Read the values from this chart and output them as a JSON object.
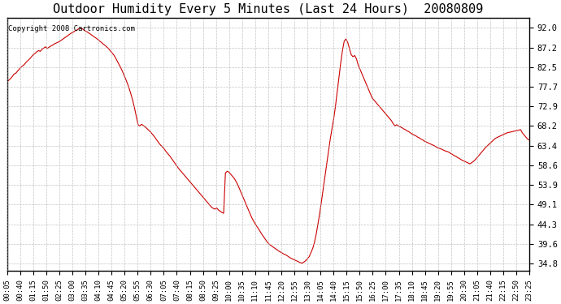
{
  "title": "Outdoor Humidity Every 5 Minutes (Last 24 Hours)  20080809",
  "copyright": "Copyright 2008 Cartronics.com",
  "line_color": "#cc0000",
  "background_color": "#ffffff",
  "grid_color": "#aaaaaa",
  "yticks": [
    34.8,
    39.6,
    44.3,
    49.1,
    53.9,
    58.6,
    63.4,
    68.2,
    72.9,
    77.7,
    82.5,
    87.2,
    92.0
  ],
  "ylim": [
    33.0,
    94.5
  ],
  "xtick_labels": [
    "00:05",
    "00:40",
    "01:15",
    "01:50",
    "02:25",
    "03:00",
    "03:35",
    "04:10",
    "04:45",
    "05:20",
    "05:55",
    "06:30",
    "07:05",
    "07:40",
    "08:15",
    "08:50",
    "09:25",
    "10:00",
    "10:35",
    "11:10",
    "11:45",
    "12:20",
    "12:55",
    "13:30",
    "14:05",
    "14:40",
    "15:15",
    "15:50",
    "16:25",
    "17:00",
    "17:35",
    "18:10",
    "18:45",
    "19:20",
    "19:55",
    "20:30",
    "21:05",
    "21:40",
    "22:15",
    "22:50",
    "23:25"
  ],
  "humidity_values": [
    79.0,
    79.3,
    79.7,
    80.2,
    80.8,
    81.0,
    81.5,
    82.0,
    82.5,
    82.8,
    83.2,
    83.7,
    84.1,
    84.5,
    85.0,
    85.5,
    85.8,
    86.2,
    86.5,
    86.3,
    86.8,
    87.1,
    87.4,
    87.0,
    87.3,
    87.6,
    87.8,
    88.1,
    88.3,
    88.5,
    88.7,
    89.0,
    89.3,
    89.6,
    89.9,
    90.2,
    90.5,
    90.8,
    91.0,
    91.3,
    91.5,
    91.8,
    92.0,
    91.8,
    91.5,
    91.2,
    91.0,
    90.7,
    90.4,
    90.1,
    89.8,
    89.5,
    89.2,
    88.8,
    88.5,
    88.1,
    87.8,
    87.4,
    87.0,
    86.5,
    86.0,
    85.5,
    84.8,
    84.0,
    83.2,
    82.4,
    81.5,
    80.5,
    79.5,
    78.4,
    77.2,
    75.8,
    74.3,
    72.5,
    70.5,
    68.5,
    68.2,
    68.6,
    68.3,
    68.0,
    67.6,
    67.2,
    66.8,
    66.3,
    65.8,
    65.2,
    64.6,
    64.0,
    63.5,
    63.1,
    62.6,
    62.0,
    61.5,
    61.0,
    60.4,
    59.8,
    59.2,
    58.6,
    58.0,
    57.5,
    57.0,
    56.5,
    56.0,
    55.5,
    55.0,
    54.5,
    54.0,
    53.5,
    53.0,
    52.5,
    52.0,
    51.5,
    51.0,
    50.5,
    50.0,
    49.5,
    49.0,
    48.5,
    48.2,
    48.0,
    48.3,
    47.8,
    47.5,
    47.2,
    47.0,
    56.8,
    57.2,
    57.0,
    56.5,
    56.0,
    55.5,
    54.8,
    54.0,
    53.0,
    52.0,
    51.0,
    50.0,
    49.0,
    48.0,
    47.0,
    46.0,
    45.2,
    44.5,
    43.8,
    43.2,
    42.5,
    41.8,
    41.2,
    40.6,
    40.0,
    39.5,
    39.2,
    38.9,
    38.6,
    38.3,
    38.0,
    37.7,
    37.5,
    37.2,
    37.0,
    36.8,
    36.5,
    36.2,
    36.0,
    35.8,
    35.6,
    35.4,
    35.2,
    35.0,
    34.9,
    35.2,
    35.5,
    36.0,
    36.5,
    37.5,
    38.5,
    40.0,
    42.0,
    44.5,
    47.0,
    50.0,
    53.0,
    56.0,
    59.0,
    62.0,
    65.0,
    67.5,
    70.0,
    73.0,
    76.5,
    80.0,
    83.5,
    86.5,
    88.8,
    89.3,
    88.5,
    87.0,
    85.5,
    85.0,
    85.3,
    84.5,
    83.0,
    82.0,
    81.0,
    80.0,
    79.0,
    78.0,
    77.0,
    76.0,
    75.0,
    74.5,
    74.0,
    73.5,
    73.0,
    72.5,
    72.0,
    71.5,
    71.0,
    70.5,
    70.0,
    69.5,
    68.8,
    68.2,
    68.5,
    68.2,
    68.0,
    67.8,
    67.5,
    67.3,
    67.0,
    66.8,
    66.5,
    66.2,
    66.0,
    65.8,
    65.5,
    65.3,
    65.0,
    64.8,
    64.5,
    64.3,
    64.1,
    63.9,
    63.7,
    63.5,
    63.3,
    63.0,
    62.8,
    62.7,
    62.5,
    62.3,
    62.1,
    62.0,
    61.8,
    61.5,
    61.3,
    61.0,
    60.8,
    60.5,
    60.3,
    60.0,
    59.8,
    59.6,
    59.4,
    59.2,
    59.0,
    59.3,
    59.6,
    60.0,
    60.5,
    61.0,
    61.5,
    62.0,
    62.5,
    63.0,
    63.4,
    63.8,
    64.2,
    64.6,
    65.0,
    65.3,
    65.5,
    65.7,
    65.9,
    66.1,
    66.3,
    66.5,
    66.6,
    66.7,
    66.8,
    66.9,
    67.0,
    67.1,
    67.2,
    67.3,
    66.5,
    66.0,
    65.5,
    65.0,
    64.8
  ]
}
